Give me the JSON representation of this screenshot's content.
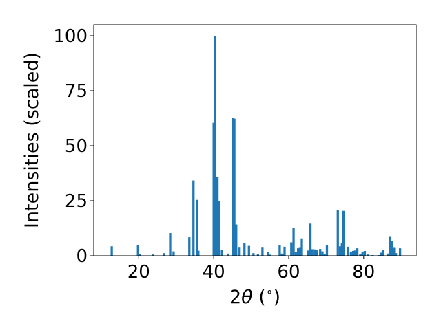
{
  "chart_data": {
    "type": "bar",
    "xlabel_prefix": "2",
    "xlabel_theta": "θ",
    "xlabel_suffix": " (",
    "xlabel_degree": "∘",
    "xlabel_close": ")",
    "ylabel": "Intensities (scaled)",
    "xlim": [
      8,
      94
    ],
    "ylim": [
      0,
      105
    ],
    "xticks": [
      20,
      40,
      60,
      80
    ],
    "yticks": [
      0,
      25,
      50,
      75,
      100
    ],
    "bar_color": "#1f77b4",
    "bar_width": 0.6,
    "x": [
      12.8,
      19.8,
      20.3,
      23.8,
      26.7,
      28.4,
      29.3,
      33.5,
      34.6,
      35.5,
      35.9,
      40.0,
      40.4,
      41.0,
      41.5,
      42.2,
      43.8,
      45.2,
      45.5,
      46.0,
      46.9,
      48.2,
      49.4,
      50.6,
      51.8,
      53.0,
      54.5,
      55.1,
      57.6,
      58.2,
      58.5,
      58.9,
      60.7,
      61.3,
      61.9,
      62.5,
      63.0,
      63.5,
      65.1,
      65.8,
      66.3,
      67.0,
      67.6,
      68.4,
      69.0,
      69.6,
      70.2,
      73.1,
      73.7,
      74.2,
      74.6,
      75.8,
      76.6,
      77.2,
      77.7,
      78.3,
      79.1,
      79.7,
      80.3,
      81.2,
      82.4,
      84.0,
      84.6,
      85.1,
      86.4,
      87.0,
      87.5,
      88.1,
      88.6,
      89.7
    ],
    "values": [
      4.3,
      5.0,
      0.7,
      0.6,
      1.2,
      10.3,
      2.0,
      8.4,
      34.2,
      25.4,
      2.3,
      60.4,
      100.0,
      35.7,
      25.0,
      2.6,
      1.0,
      62.5,
      62.3,
      14.2,
      4.0,
      5.9,
      4.5,
      1.2,
      0.8,
      4.0,
      1.7,
      0.5,
      4.7,
      1.0,
      0.9,
      4.1,
      6.1,
      12.5,
      1.6,
      3.4,
      3.9,
      7.9,
      2.4,
      14.6,
      3.0,
      2.9,
      2.7,
      3.1,
      2.0,
      0.8,
      4.7,
      20.7,
      4.3,
      5.6,
      20.4,
      4.1,
      1.9,
      2.2,
      2.4,
      3.4,
      0.9,
      1.9,
      2.2,
      0.6,
      0.3,
      0.3,
      1.4,
      2.6,
      1.0,
      8.6,
      6.6,
      3.9,
      1.2,
      3.4
    ]
  }
}
